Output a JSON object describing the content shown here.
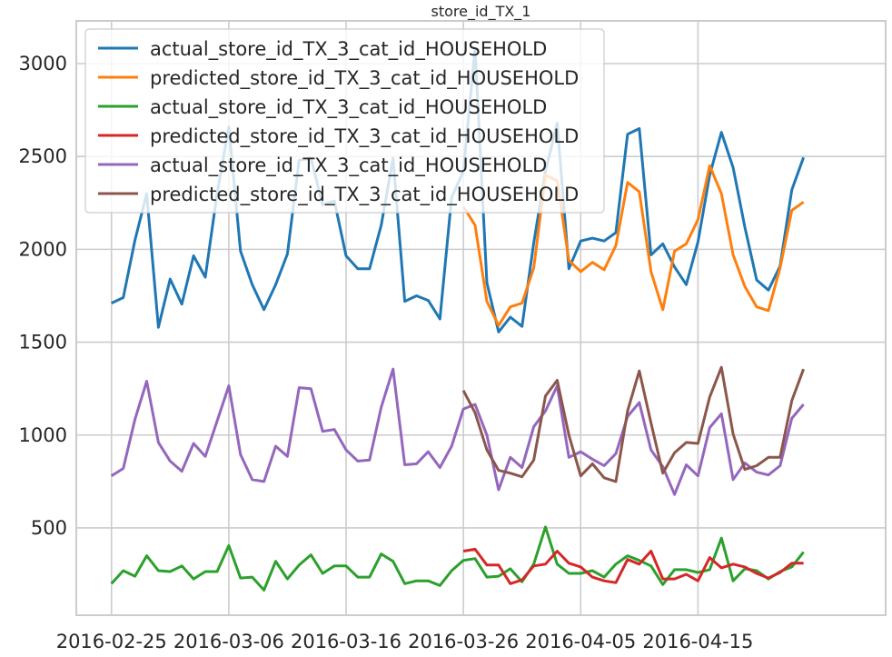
{
  "chart_data": {
    "type": "line",
    "title": "store_id_TX_1",
    "xlabel": "",
    "ylabel": "",
    "x_start": "2016-02-25",
    "x_ticks": [
      "2016-02-25",
      "2016-03-06",
      "2016-03-16",
      "2016-03-26",
      "2016-04-05",
      "2016-04-15"
    ],
    "xlim": [
      "2016-02-22",
      "2016-05-01"
    ],
    "y_ticks": [
      500,
      1000,
      1500,
      2000,
      2500,
      3000
    ],
    "ylim": [
      30,
      3230
    ],
    "grid": true,
    "legend_position": "upper-left",
    "series": [
      {
        "name": "actual_store_id_TX_3_cat_id_HOUSEHOLD",
        "color": "#1f77b4",
        "x_offset": 0,
        "values": [
          1710,
          1740,
          2050,
          2300,
          1580,
          1840,
          1705,
          1965,
          1850,
          2300,
          2660,
          1990,
          1810,
          1675,
          1810,
          1975,
          2480,
          2490,
          2240,
          2260,
          1965,
          1895,
          1895,
          2130,
          2490,
          1720,
          1750,
          1725,
          1625,
          2280,
          2420,
          3080,
          1820,
          1555,
          1635,
          1585,
          2035,
          2420,
          2680,
          1895,
          2045,
          2060,
          2045,
          2090,
          2620,
          2650,
          1970,
          2030,
          1905,
          1810,
          2040,
          2400,
          2630,
          2440,
          2120,
          1835,
          1780,
          1910,
          2320,
          2495
        ]
      },
      {
        "name": "predicted_store_id_TX_3_cat_id_HOUSEHOLD",
        "color": "#ff7f0e",
        "x_offset": 30,
        "values": [
          2230,
          2130,
          1720,
          1590,
          1690,
          1710,
          1900,
          2400,
          2370,
          1940,
          1880,
          1930,
          1890,
          2020,
          2360,
          2310,
          1880,
          1675,
          1990,
          2030,
          2160,
          2450,
          2300,
          1970,
          1800,
          1690,
          1670,
          1900,
          2210,
          2255
        ]
      },
      {
        "name": "actual_store_id_TX_3_cat_id_HOUSEHOLD",
        "color": "#2ca02c",
        "x_offset": 0,
        "values": [
          200,
          270,
          240,
          350,
          270,
          265,
          295,
          225,
          265,
          265,
          405,
          230,
          235,
          165,
          320,
          225,
          300,
          355,
          255,
          295,
          295,
          235,
          235,
          360,
          320,
          200,
          215,
          215,
          190,
          270,
          325,
          335,
          235,
          240,
          280,
          210,
          305,
          505,
          305,
          255,
          255,
          270,
          235,
          305,
          350,
          325,
          295,
          195,
          275,
          275,
          260,
          275,
          445,
          215,
          280,
          270,
          225,
          265,
          290,
          370
        ]
      },
      {
        "name": "predicted_store_id_TX_3_cat_id_HOUSEHOLD",
        "color": "#d62728",
        "x_offset": 30,
        "values": [
          375,
          385,
          300,
          300,
          200,
          220,
          295,
          305,
          375,
          310,
          290,
          235,
          215,
          205,
          330,
          305,
          375,
          225,
          225,
          250,
          215,
          340,
          285,
          305,
          290,
          255,
          230,
          260,
          310,
          310
        ]
      },
      {
        "name": "actual_store_id_TX_3_cat_id_HOUSEHOLD",
        "color": "#9467bd",
        "x_offset": 0,
        "values": [
          780,
          820,
          1085,
          1290,
          960,
          860,
          805,
          955,
          885,
          1075,
          1265,
          895,
          760,
          750,
          940,
          885,
          1255,
          1250,
          1020,
          1030,
          920,
          860,
          865,
          1150,
          1355,
          840,
          845,
          910,
          825,
          940,
          1140,
          1165,
          1000,
          705,
          880,
          825,
          1045,
          1130,
          1265,
          880,
          910,
          870,
          835,
          900,
          1100,
          1175,
          920,
          830,
          680,
          840,
          780,
          1040,
          1115,
          760,
          850,
          800,
          785,
          835,
          1090,
          1165
        ]
      },
      {
        "name": "predicted_store_id_TX_3_cat_id_HOUSEHOLD",
        "color": "#8c564b",
        "x_offset": 30,
        "values": [
          1240,
          1120,
          920,
          810,
          795,
          775,
          865,
          1210,
          1295,
          1000,
          780,
          845,
          770,
          750,
          1130,
          1345,
          1065,
          795,
          905,
          960,
          955,
          1205,
          1365,
          1005,
          815,
          835,
          880,
          880,
          1185,
          1355
        ]
      }
    ]
  }
}
